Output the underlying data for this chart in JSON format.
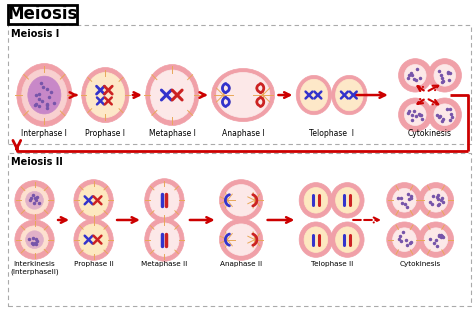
{
  "title": "Meiosis",
  "bg_color": "#ffffff",
  "section1_label": "Meiosis I",
  "section2_label": "Meiosis II",
  "meiosis1_stages": [
    "Interphase I",
    "Prophase I",
    "Metaphase I",
    "Anaphase I",
    "Telophase  I",
    "Cytokinesis"
  ],
  "meiosis2_stages": [
    "Interkinesis\n(InterphaseII)",
    "Prophase II",
    "Metaphase II",
    "Anaphase II",
    "Telophase II",
    "Cytokinesis"
  ],
  "cell_outer": "#f0a0a8",
  "cell_mid": "#f8d0d0",
  "cell_inner": "#fce8e8",
  "nucleus_purple": "#c090c0",
  "nucleus_yellow": "#f8e890",
  "arrow_color": "#cc0000",
  "chrom_blue": "#3333cc",
  "chrom_red": "#cc2222",
  "aster_color": "#e8a858",
  "chromatin_color": "#7755aa",
  "label_fs": 5.5
}
